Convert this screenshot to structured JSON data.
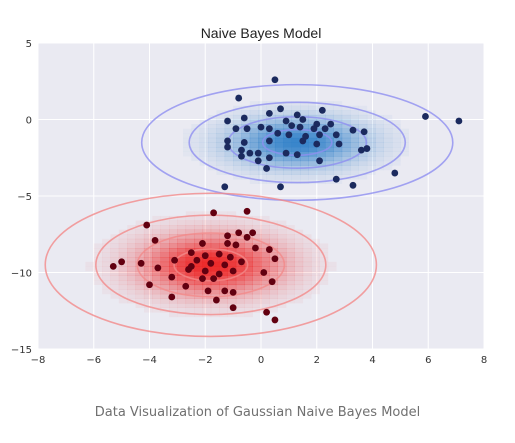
{
  "chart_data": {
    "type": "scatter",
    "title": "Naive Bayes Model",
    "xlabel": "",
    "ylabel": "",
    "xlim": [
      -8,
      8
    ],
    "ylim": [
      -15,
      5
    ],
    "x_ticks": [
      -8,
      -6,
      -4,
      -2,
      0,
      2,
      4,
      6,
      8
    ],
    "y_ticks": [
      5,
      0,
      -5,
      -10,
      -15
    ],
    "grid": true,
    "background_color": "#eaeaf2",
    "series": [
      {
        "color": "#1b2a5e",
        "density_color": "#2f7fc8",
        "contour_color": "#8f8ff0",
        "gaussian": {
          "mean": [
            1.3,
            -1.5
          ],
          "std": [
            1.55,
            1.05
          ]
        },
        "points": [
          [
            0.5,
            2.6
          ],
          [
            -0.8,
            1.4
          ],
          [
            0.3,
            0.4
          ],
          [
            0.7,
            0.7
          ],
          [
            1.3,
            0.3
          ],
          [
            2.2,
            0.6
          ],
          [
            5.9,
            0.2
          ],
          [
            7.1,
            -0.1
          ],
          [
            -1.2,
            -0.1
          ],
          [
            -0.6,
            0.1
          ],
          [
            0.9,
            -0.1
          ],
          [
            1.5,
            0.0
          ],
          [
            2.0,
            -0.3
          ],
          [
            2.5,
            -0.3
          ],
          [
            -0.9,
            -0.6
          ],
          [
            -0.5,
            -0.6
          ],
          [
            0.0,
            -0.5
          ],
          [
            0.3,
            -0.6
          ],
          [
            1.1,
            -0.4
          ],
          [
            1.4,
            -0.5
          ],
          [
            2.3,
            -0.6
          ],
          [
            1.9,
            -0.6
          ],
          [
            0.6,
            -0.9
          ],
          [
            1.0,
            -1.0
          ],
          [
            1.6,
            -1.1
          ],
          [
            2.1,
            -1.0
          ],
          [
            2.7,
            -1.0
          ],
          [
            3.3,
            -0.7
          ],
          [
            3.7,
            -0.8
          ],
          [
            -1.2,
            -1.4
          ],
          [
            -0.6,
            -1.5
          ],
          [
            0.3,
            -1.4
          ],
          [
            1.5,
            -1.4
          ],
          [
            2.0,
            -1.6
          ],
          [
            2.8,
            -1.6
          ],
          [
            -1.2,
            -1.8
          ],
          [
            -0.7,
            -2.0
          ],
          [
            -0.4,
            -2.2
          ],
          [
            -0.1,
            -2.2
          ],
          [
            0.9,
            -2.2
          ],
          [
            1.3,
            -2.3
          ],
          [
            -0.7,
            -2.4
          ],
          [
            0.3,
            -2.5
          ],
          [
            -0.1,
            -2.7
          ],
          [
            2.1,
            -2.7
          ],
          [
            3.6,
            -2.0
          ],
          [
            3.8,
            -1.9
          ],
          [
            0.2,
            -3.2
          ],
          [
            2.7,
            -3.9
          ],
          [
            3.3,
            -4.3
          ],
          [
            4.8,
            -3.5
          ],
          [
            -1.3,
            -4.4
          ],
          [
            0.7,
            -4.4
          ]
        ]
      },
      {
        "color": "#620010",
        "density_color": "#ec2020",
        "contour_color": "#f28a8a",
        "gaussian": {
          "mean": [
            -1.8,
            -9.5
          ],
          "std": [
            1.65,
            1.3
          ]
        },
        "points": [
          [
            -0.5,
            -6.0
          ],
          [
            -1.7,
            -6.1
          ],
          [
            -4.1,
            -6.9
          ],
          [
            -0.8,
            -7.4
          ],
          [
            -0.3,
            -7.4
          ],
          [
            -1.2,
            -7.6
          ],
          [
            -0.5,
            -7.7
          ],
          [
            -3.8,
            -7.9
          ],
          [
            -2.1,
            -8.1
          ],
          [
            -1.2,
            -8.1
          ],
          [
            -0.9,
            -8.2
          ],
          [
            -0.2,
            -8.4
          ],
          [
            0.3,
            -8.5
          ],
          [
            -2.5,
            -8.7
          ],
          [
            -2.0,
            -8.9
          ],
          [
            -1.5,
            -8.8
          ],
          [
            -1.1,
            -9.0
          ],
          [
            -3.1,
            -9.2
          ],
          [
            0.5,
            -9.1
          ],
          [
            -5.0,
            -9.3
          ],
          [
            -5.3,
            -9.6
          ],
          [
            -4.3,
            -9.4
          ],
          [
            -2.3,
            -9.2
          ],
          [
            -1.8,
            -9.4
          ],
          [
            -1.3,
            -9.5
          ],
          [
            -0.7,
            -9.3
          ],
          [
            -2.5,
            -9.6
          ],
          [
            -3.7,
            -9.7
          ],
          [
            -2.0,
            -9.9
          ],
          [
            -2.6,
            -9.8
          ],
          [
            -1.5,
            -10.1
          ],
          [
            -1.0,
            -9.9
          ],
          [
            -3.2,
            -10.3
          ],
          [
            0.1,
            -10.0
          ],
          [
            -1.7,
            -10.4
          ],
          [
            -2.1,
            -10.4
          ],
          [
            -4.0,
            -10.8
          ],
          [
            -2.7,
            -10.9
          ],
          [
            -1.9,
            -11.2
          ],
          [
            0.4,
            -10.6
          ],
          [
            -1.3,
            -11.2
          ],
          [
            -1.0,
            -11.3
          ],
          [
            -3.2,
            -11.6
          ],
          [
            -1.6,
            -11.8
          ],
          [
            -1.0,
            -12.3
          ],
          [
            0.2,
            -12.6
          ],
          [
            0.5,
            -13.1
          ]
        ]
      }
    ]
  },
  "caption": "Data Visualization of Gaussian Naive Bayes Model"
}
